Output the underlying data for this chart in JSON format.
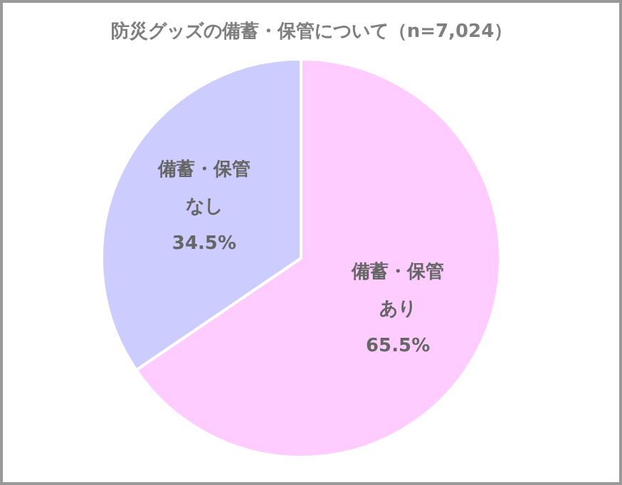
{
  "chart_data": {
    "type": "pie",
    "title": "防災グッズの備蓄・保管について（n=7,024）",
    "categories": [
      "備蓄・保管あり",
      "備蓄・保管なし"
    ],
    "values": [
      65.5,
      34.5
    ],
    "colors": [
      "#ffccff",
      "#ccccff"
    ],
    "value_labels": [
      "65.5%",
      "34.5%"
    ]
  }
}
